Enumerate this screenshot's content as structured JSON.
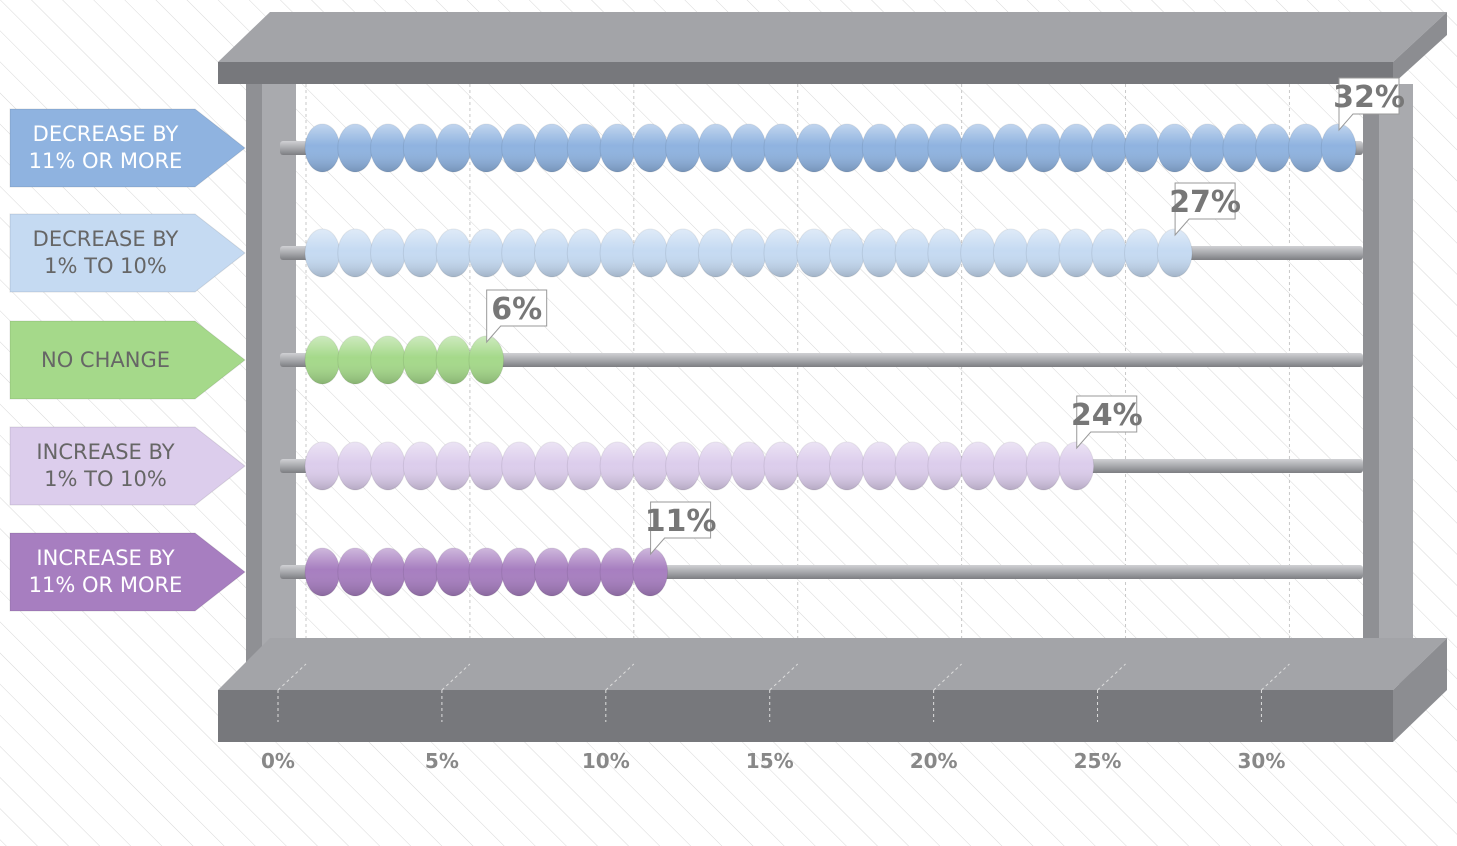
{
  "chart_data": {
    "type": "abacus-bar",
    "categories": [
      "DECREASE BY 11% OR MORE",
      "DECREASE BY 1% TO 10%",
      "NO CHANGE",
      "INCREASE BY 1% TO 10%",
      "INCREASE BY 11% OR MORE"
    ],
    "values": [
      32,
      27,
      6,
      24,
      11
    ],
    "value_labels": [
      "32%",
      "27%",
      "6%",
      "24%",
      "11%"
    ],
    "colors": [
      "#8fb3e0",
      "#c5daf2",
      "#a5d98a",
      "#dccdec",
      "#a77ec0"
    ],
    "xlim": [
      0,
      32
    ],
    "xticks": [
      {
        "value": 0,
        "label": "0%"
      },
      {
        "value": 5,
        "label": "5%"
      },
      {
        "value": 10,
        "label": "10%"
      },
      {
        "value": 15,
        "label": "15%"
      },
      {
        "value": 20,
        "label": "20%"
      },
      {
        "value": 25,
        "label": "25%"
      },
      {
        "value": 30,
        "label": "30%"
      }
    ],
    "grid": true
  }
}
